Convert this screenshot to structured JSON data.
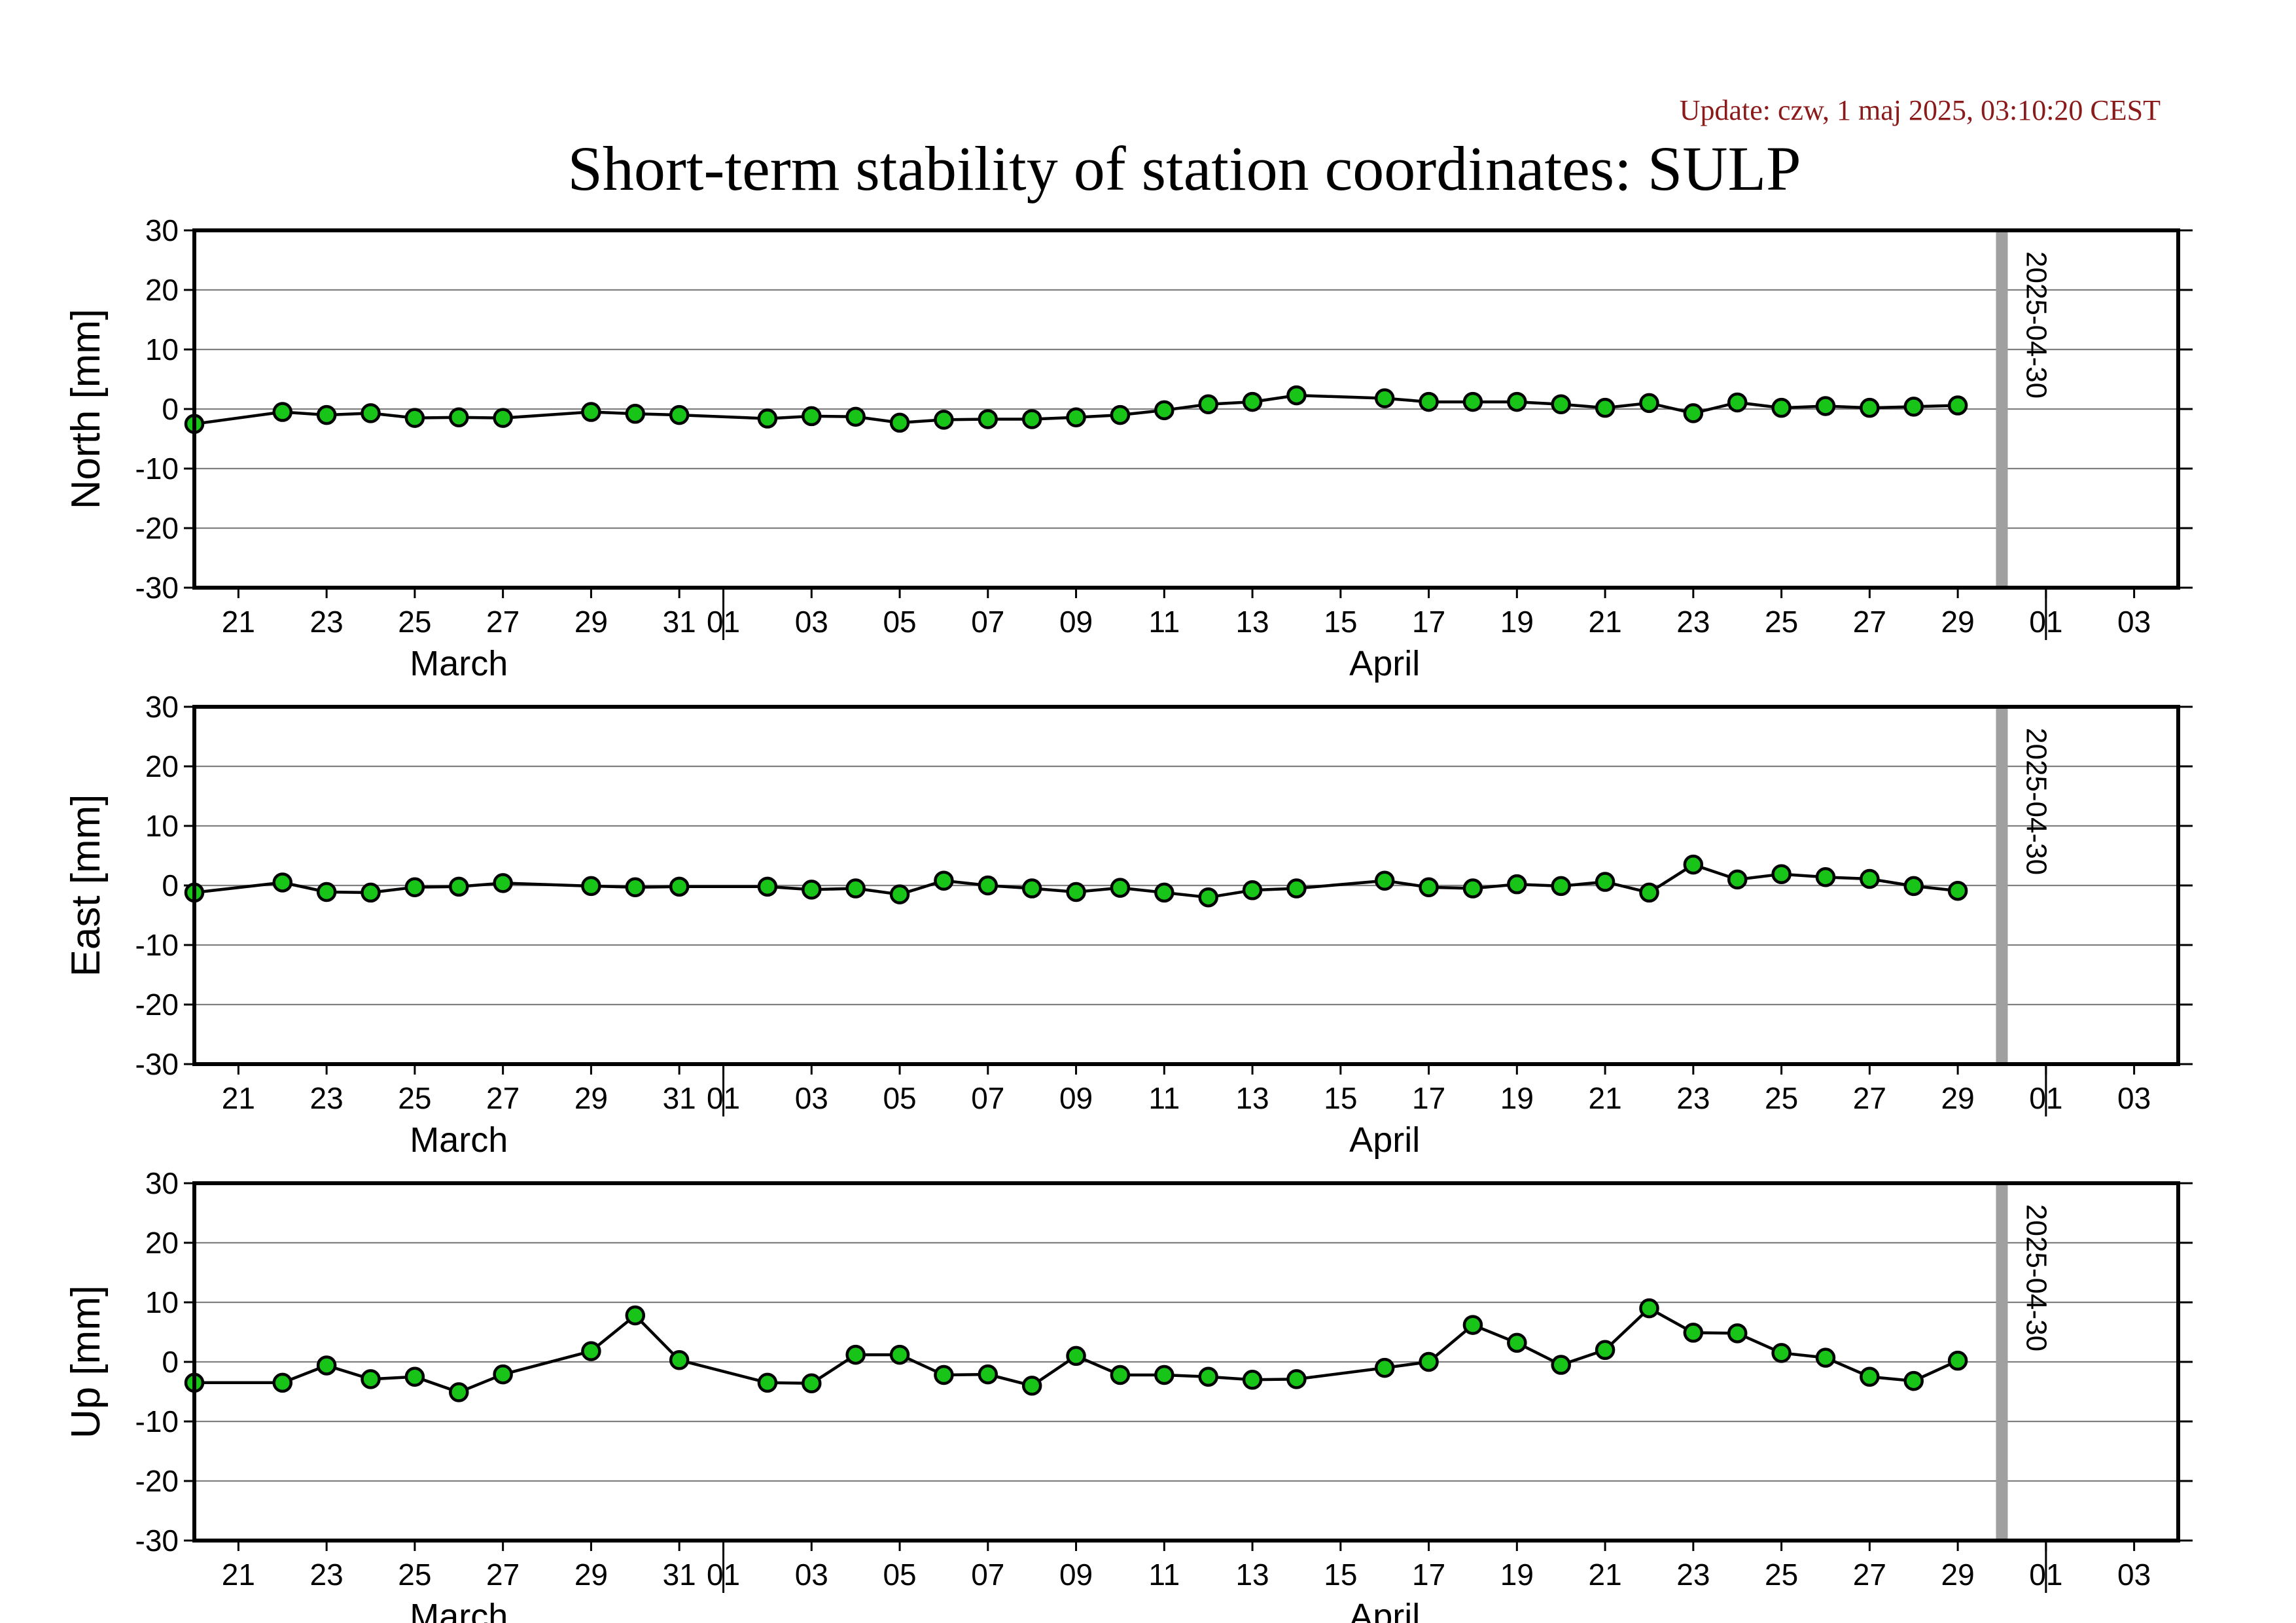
{
  "header": {
    "title": "Short-term stability of station coordinates: SULP",
    "update": "Update: czw, 1 maj 2025, 03:10:20 CEST"
  },
  "colors": {
    "update_text": "#8b1a1a",
    "marker_fill": "#17c417",
    "marker_edge": "#000000",
    "line": "#000000",
    "gridline": "#808080",
    "today_line": "#a0a0a0",
    "frame": "#000000"
  },
  "x_axis": {
    "start": "2025-03-20",
    "end": "2025-05-04",
    "tick_labels": [
      {
        "date": "2025-03-21",
        "label": "21"
      },
      {
        "date": "2025-03-23",
        "label": "23"
      },
      {
        "date": "2025-03-25",
        "label": "25"
      },
      {
        "date": "2025-03-27",
        "label": "27"
      },
      {
        "date": "2025-03-29",
        "label": "29"
      },
      {
        "date": "2025-03-31",
        "label": "31"
      },
      {
        "date": "2025-04-01",
        "label": "01"
      },
      {
        "date": "2025-04-03",
        "label": "03"
      },
      {
        "date": "2025-04-05",
        "label": "05"
      },
      {
        "date": "2025-04-07",
        "label": "07"
      },
      {
        "date": "2025-04-09",
        "label": "09"
      },
      {
        "date": "2025-04-11",
        "label": "11"
      },
      {
        "date": "2025-04-13",
        "label": "13"
      },
      {
        "date": "2025-04-15",
        "label": "15"
      },
      {
        "date": "2025-04-17",
        "label": "17"
      },
      {
        "date": "2025-04-19",
        "label": "19"
      },
      {
        "date": "2025-04-21",
        "label": "21"
      },
      {
        "date": "2025-04-23",
        "label": "23"
      },
      {
        "date": "2025-04-25",
        "label": "25"
      },
      {
        "date": "2025-04-27",
        "label": "27"
      },
      {
        "date": "2025-04-29",
        "label": "29"
      },
      {
        "date": "2025-05-01",
        "label": "01"
      },
      {
        "date": "2025-05-03",
        "label": "03"
      }
    ],
    "month_boundaries": [
      "2025-04-01",
      "2025-05-01"
    ],
    "month_labels": [
      {
        "label": "March",
        "date": "2025-03-26"
      },
      {
        "label": "April",
        "date": "2025-04-16"
      }
    ],
    "today_marker": {
      "date": "2025-04-30",
      "label": "2025-04-30"
    }
  },
  "chart_data": [
    {
      "type": "line",
      "ylabel": "North [mm]",
      "ylim": [
        -30,
        30
      ],
      "yticks": [
        30,
        20,
        10,
        0,
        -10,
        -20,
        -30
      ],
      "grid": true,
      "series": [
        {
          "x": [
            "2025-03-20",
            "2025-03-22",
            "2025-03-23",
            "2025-03-24",
            "2025-03-25",
            "2025-03-26",
            "2025-03-27",
            "2025-03-29",
            "2025-03-30",
            "2025-03-31",
            "2025-04-02",
            "2025-04-03",
            "2025-04-04",
            "2025-04-05",
            "2025-04-06",
            "2025-04-07",
            "2025-04-08",
            "2025-04-09",
            "2025-04-10",
            "2025-04-11",
            "2025-04-12",
            "2025-04-13",
            "2025-04-14",
            "2025-04-16",
            "2025-04-17",
            "2025-04-18",
            "2025-04-19",
            "2025-04-20",
            "2025-04-21",
            "2025-04-22",
            "2025-04-23",
            "2025-04-24",
            "2025-04-25",
            "2025-04-26",
            "2025-04-27",
            "2025-04-28",
            "2025-04-29"
          ],
          "values": [
            -2.5,
            -0.5,
            -1,
            -0.7,
            -1.5,
            -1.4,
            -1.5,
            -0.5,
            -0.8,
            -1,
            -1.6,
            -1.2,
            -1.3,
            -2.3,
            -1.8,
            -1.7,
            -1.7,
            -1.4,
            -1,
            -0.2,
            0.8,
            1.2,
            2.3,
            1.8,
            1.2,
            1.2,
            1.2,
            0.8,
            0.2,
            1,
            -0.7,
            1.1,
            0.2,
            0.5,
            0.2,
            0.4,
            0.6
          ]
        }
      ]
    },
    {
      "type": "line",
      "ylabel": "East [mm]",
      "ylim": [
        -30,
        30
      ],
      "yticks": [
        30,
        20,
        10,
        0,
        -10,
        -20,
        -30
      ],
      "grid": true,
      "series": [
        {
          "x": [
            "2025-03-20",
            "2025-03-22",
            "2025-03-23",
            "2025-03-24",
            "2025-03-25",
            "2025-03-26",
            "2025-03-27",
            "2025-03-29",
            "2025-03-30",
            "2025-03-31",
            "2025-04-02",
            "2025-04-03",
            "2025-04-04",
            "2025-04-05",
            "2025-04-06",
            "2025-04-07",
            "2025-04-08",
            "2025-04-09",
            "2025-04-10",
            "2025-04-11",
            "2025-04-12",
            "2025-04-13",
            "2025-04-14",
            "2025-04-16",
            "2025-04-17",
            "2025-04-18",
            "2025-04-19",
            "2025-04-20",
            "2025-04-21",
            "2025-04-22",
            "2025-04-23",
            "2025-04-24",
            "2025-04-25",
            "2025-04-26",
            "2025-04-27",
            "2025-04-28",
            "2025-04-29"
          ],
          "values": [
            -1.2,
            0.5,
            -1.1,
            -1.2,
            -0.3,
            -0.2,
            0.4,
            -0.1,
            -0.3,
            -0.2,
            -0.2,
            -0.7,
            -0.5,
            -1.5,
            0.8,
            0,
            -0.5,
            -1.1,
            -0.4,
            -1.2,
            -2,
            -0.8,
            -0.5,
            0.8,
            -0.3,
            -0.5,
            0.2,
            -0.1,
            0.6,
            -1.2,
            3.5,
            1,
            1.9,
            1.4,
            1.1,
            -0.1,
            -0.9
          ]
        }
      ]
    },
    {
      "type": "line",
      "ylabel": "Up [mm]",
      "ylim": [
        -30,
        30
      ],
      "yticks": [
        30,
        20,
        10,
        0,
        -10,
        -20,
        -30
      ],
      "grid": true,
      "series": [
        {
          "x": [
            "2025-03-20",
            "2025-03-22",
            "2025-03-23",
            "2025-03-24",
            "2025-03-25",
            "2025-03-26",
            "2025-03-27",
            "2025-03-29",
            "2025-03-30",
            "2025-03-31",
            "2025-04-02",
            "2025-04-03",
            "2025-04-04",
            "2025-04-05",
            "2025-04-06",
            "2025-04-07",
            "2025-04-08",
            "2025-04-09",
            "2025-04-10",
            "2025-04-11",
            "2025-04-12",
            "2025-04-13",
            "2025-04-14",
            "2025-04-16",
            "2025-04-17",
            "2025-04-18",
            "2025-04-19",
            "2025-04-20",
            "2025-04-21",
            "2025-04-22",
            "2025-04-23",
            "2025-04-24",
            "2025-04-25",
            "2025-04-26",
            "2025-04-27",
            "2025-04-28",
            "2025-04-29"
          ],
          "values": [
            -3.5,
            -3.5,
            -0.6,
            -2.9,
            -2.5,
            -5.1,
            -2.1,
            1.8,
            7.8,
            0.3,
            -3.5,
            -3.6,
            1.2,
            1.2,
            -2.2,
            -2.1,
            -4,
            1,
            -2.2,
            -2.2,
            -2.5,
            -3,
            -2.9,
            -1,
            0,
            6.2,
            3.2,
            -0.5,
            2,
            9,
            4.9,
            4.8,
            1.5,
            0.7,
            -2.5,
            -3.2,
            0.2
          ]
        }
      ]
    }
  ]
}
